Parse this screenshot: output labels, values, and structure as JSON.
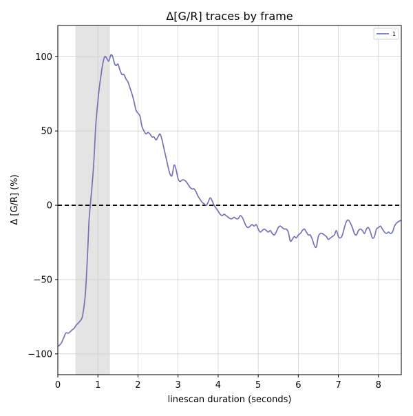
{
  "chart_data": {
    "type": "line",
    "title": "Δ[G/R] traces by frame",
    "xlabel": "linescan duration (seconds)",
    "ylabel": "Δ [G/R] (%)",
    "xlim": [
      0,
      8.57
    ],
    "ylim": [
      -114,
      121
    ],
    "xticks": [
      0,
      1,
      2,
      3,
      4,
      5,
      6,
      7,
      8
    ],
    "xtick_labels": [
      "0",
      "1",
      "2",
      "3",
      "4",
      "5",
      "6",
      "7",
      "8"
    ],
    "yticks": [
      100,
      50,
      0,
      -50,
      -100
    ],
    "ytick_labels": [
      "100",
      "50",
      "0",
      "−50",
      "−100"
    ],
    "grid": true,
    "legend_position": "top-right",
    "shaded_region": {
      "x0": 0.44,
      "x1": 1.3,
      "color": "#e4e4e4"
    },
    "reference_line": {
      "y": 0,
      "style": "dashed",
      "color": "#000000"
    },
    "series": [
      {
        "name": "1",
        "color": "#7272b4",
        "x": [
          0.0,
          0.08,
          0.15,
          0.2,
          0.27,
          0.35,
          0.4,
          0.45,
          0.52,
          0.58,
          0.62,
          0.68,
          0.72,
          0.75,
          0.78,
          0.82,
          0.86,
          0.9,
          0.95,
          1.0,
          1.03,
          1.07,
          1.12,
          1.17,
          1.22,
          1.27,
          1.32,
          1.35,
          1.38,
          1.42,
          1.46,
          1.5,
          1.55,
          1.6,
          1.65,
          1.7,
          1.75,
          1.8,
          1.85,
          1.9,
          1.95,
          2.0,
          2.05,
          2.1,
          2.15,
          2.2,
          2.25,
          2.3,
          2.35,
          2.4,
          2.45,
          2.5,
          2.55,
          2.6,
          2.65,
          2.7,
          2.75,
          2.8,
          2.85,
          2.9,
          2.95,
          3.0,
          3.05,
          3.1,
          3.15,
          3.2,
          3.25,
          3.3,
          3.35,
          3.4,
          3.45,
          3.5,
          3.55,
          3.6,
          3.65,
          3.7,
          3.75,
          3.8,
          3.85,
          3.9,
          3.95,
          4.0,
          4.05,
          4.1,
          4.15,
          4.2,
          4.25,
          4.3,
          4.35,
          4.4,
          4.45,
          4.5,
          4.55,
          4.6,
          4.65,
          4.7,
          4.75,
          4.8,
          4.85,
          4.9,
          4.95,
          5.0,
          5.05,
          5.1,
          5.15,
          5.2,
          5.25,
          5.3,
          5.35,
          5.4,
          5.45,
          5.5,
          5.55,
          5.6,
          5.65,
          5.7,
          5.75,
          5.8,
          5.85,
          5.9,
          5.95,
          6.0,
          6.05,
          6.1,
          6.15,
          6.2,
          6.25,
          6.3,
          6.35,
          6.4,
          6.45,
          6.5,
          6.55,
          6.6,
          6.65,
          6.7,
          6.75,
          6.8,
          6.85,
          6.9,
          6.95,
          7.0,
          7.05,
          7.1,
          7.15,
          7.2,
          7.25,
          7.3,
          7.35,
          7.4,
          7.45,
          7.5,
          7.55,
          7.6,
          7.65,
          7.7,
          7.75,
          7.8,
          7.85,
          7.9,
          7.95,
          8.0,
          8.05,
          8.1,
          8.15,
          8.2,
          8.25,
          8.3,
          8.35,
          8.4,
          8.45,
          8.5,
          8.57
        ],
        "y": [
          -95,
          -93,
          -89,
          -86,
          -86,
          -84,
          -83,
          -81,
          -79,
          -77,
          -74,
          -62,
          -45,
          -28,
          -10,
          3,
          15,
          30,
          55,
          70,
          78,
          86,
          95,
          100,
          99,
          97,
          101,
          101,
          99,
          95,
          94,
          95,
          91,
          88,
          88,
          85,
          83,
          79,
          75,
          70,
          64,
          62,
          60,
          53,
          50,
          48,
          49,
          48,
          46,
          46,
          44,
          46,
          48,
          44,
          38,
          32,
          26,
          21,
          20,
          27,
          24,
          18,
          16,
          17,
          17,
          16,
          14,
          12,
          11,
          11,
          9,
          6,
          4,
          2,
          1,
          0,
          2,
          5,
          3,
          0,
          -2,
          -4,
          -6,
          -7,
          -6,
          -7,
          -8,
          -9,
          -9,
          -8,
          -9,
          -9,
          -7,
          -8,
          -11,
          -14,
          -15,
          -14,
          -13,
          -14,
          -13,
          -16,
          -18,
          -17,
          -16,
          -17,
          -18,
          -17,
          -19,
          -20,
          -18,
          -15,
          -14,
          -15,
          -16,
          -16,
          -18,
          -24,
          -23,
          -21,
          -22,
          -20,
          -19,
          -17,
          -16,
          -18,
          -20,
          -20,
          -23,
          -27,
          -28,
          -21,
          -19,
          -19,
          -20,
          -21,
          -23,
          -22,
          -21,
          -20,
          -17,
          -21,
          -22,
          -20,
          -15,
          -11,
          -10,
          -12,
          -15,
          -19,
          -20,
          -17,
          -16,
          -17,
          -19,
          -16,
          -15,
          -18,
          -22,
          -21,
          -16,
          -15,
          -14,
          -16,
          -18,
          -19,
          -18,
          -19,
          -18,
          -14,
          -12,
          -11,
          -10
        ]
      }
    ]
  }
}
